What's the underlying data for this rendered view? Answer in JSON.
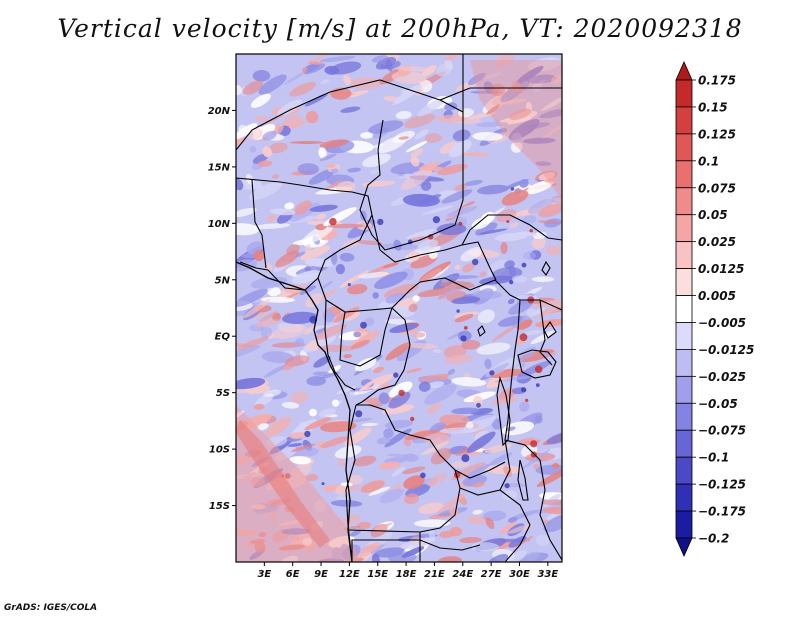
{
  "title": "Vertical velocity [m/s] at 200hPa, VT: 2020092318",
  "footer": "GrADS: IGES/COLA",
  "map": {
    "variable": "Vertical velocity",
    "units": "m/s",
    "level": "200hPa",
    "valid_time": "2020092318",
    "lat_labels": [
      "20N",
      "15N",
      "10N",
      "5N",
      "EQ",
      "5S",
      "10S",
      "15S"
    ],
    "lon_labels": [
      "3E",
      "6E",
      "9E",
      "12E",
      "15E",
      "18E",
      "21E",
      "24E",
      "27E",
      "30E",
      "33E"
    ],
    "lat_values": [
      20,
      15,
      10,
      5,
      0,
      -5,
      -10,
      -15
    ],
    "lon_values": [
      3,
      6,
      9,
      12,
      15,
      18,
      21,
      24,
      27,
      30,
      33
    ],
    "lat_range": [
      -20,
      25
    ],
    "lon_range": [
      0,
      34.5
    ]
  },
  "colorbar": {
    "labels": [
      "0.175",
      "0.15",
      "0.125",
      "0.1",
      "0.075",
      "0.05",
      "0.025",
      "0.0125",
      "0.005",
      "−0.005",
      "−0.0125",
      "−0.025",
      "−0.05",
      "−0.075",
      "−0.1",
      "−0.125",
      "−0.175",
      "−0.2"
    ],
    "colors": [
      "#b01a1a",
      "#c42a2a",
      "#d43f3f",
      "#e05757",
      "#ea7070",
      "#f08b8b",
      "#f5a5a5",
      "#f9c3c3",
      "#fcdede",
      "#ffffff",
      "#dcdcfa",
      "#bdbdf3",
      "#9f9fec",
      "#8383e2",
      "#6666d6",
      "#4a4ac8",
      "#3030b6",
      "#1c1ca2",
      "#10108a"
    ]
  }
}
